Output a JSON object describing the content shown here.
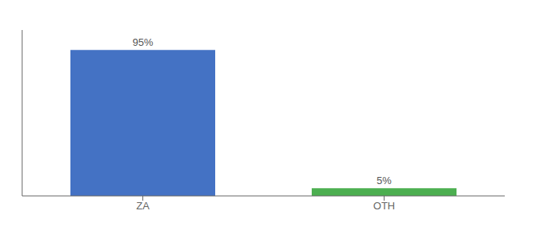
{
  "chart_data": {
    "type": "bar",
    "categories": [
      "ZA",
      "OTH"
    ],
    "values": [
      95,
      5
    ],
    "colors": [
      "#4472c4",
      "#4caf50"
    ],
    "value_labels": [
      "95%",
      "5%"
    ],
    "data_labels": true,
    "ylim": [
      0,
      108
    ],
    "grid": false,
    "tick_labels": "x"
  }
}
